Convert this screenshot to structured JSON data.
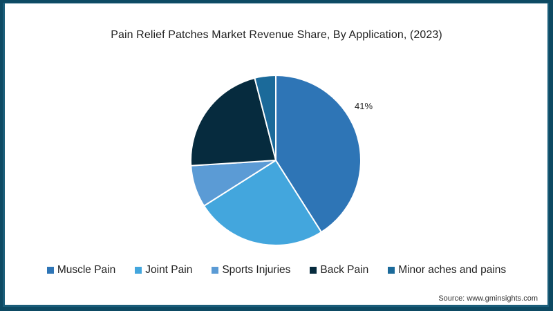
{
  "title": "Pain Relief Patches Market Revenue Share, By Application, (2023)",
  "source": "Source: www.gminsights.com",
  "colors": {
    "border": "#0d4a63",
    "background": "#ffffff"
  },
  "pie_label": "41%",
  "legend": [
    {
      "label": "Muscle Pain",
      "color": "#2e75b6"
    },
    {
      "label": "Joint Pain",
      "color": "#43a6dd"
    },
    {
      "label": "Sports Injuries",
      "color": "#5b9bd5"
    },
    {
      "label": "Back Pain",
      "color": "#062b3e"
    },
    {
      "label": "Minor aches and pains",
      "color": "#1b6a9a"
    }
  ],
  "chart_data": {
    "type": "pie",
    "title": "Pain Relief Patches Market Revenue Share, By Application, (2023)",
    "categories": [
      "Muscle Pain",
      "Joint Pain",
      "Sports Injuries",
      "Back Pain",
      "Minor aches and pains"
    ],
    "values": [
      41,
      25,
      8,
      22,
      4
    ],
    "unit": "%",
    "data_labels": [
      {
        "category": "Muscle Pain",
        "text": "41%"
      }
    ],
    "start_angle": "12 o'clock, clockwise",
    "legend_position": "bottom",
    "source": "Source: www.gminsights.com"
  }
}
